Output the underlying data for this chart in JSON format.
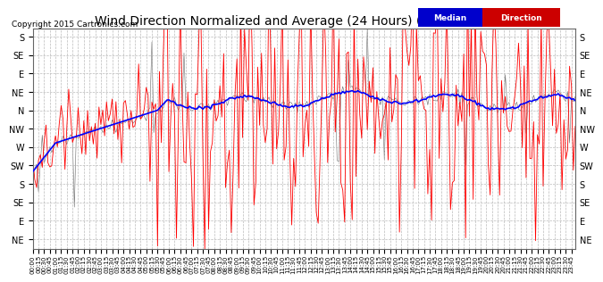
{
  "title": "Wind Direction Normalized and Average (24 Hours) (Old) 20150530",
  "copyright": "Copyright 2015 Cartronics.com",
  "background_color": "#ffffff",
  "plot_bg_color": "#ffffff",
  "grid_color": "#bbbbbb",
  "y_labels": [
    "S",
    "SE",
    "E",
    "NE",
    "N",
    "NW",
    "W",
    "SW",
    "S",
    "SE",
    "E",
    "NE"
  ],
  "y_values": [
    0,
    45,
    90,
    135,
    180,
    225,
    270,
    315,
    360,
    405,
    450,
    495
  ],
  "y_lim": [
    -20,
    520
  ],
  "red_line_color": "#ff0000",
  "blue_line_color": "#0000ff",
  "black_line_color": "#000000",
  "title_fontsize": 10,
  "copyright_fontsize": 6.5,
  "axis_label_fontsize": 7,
  "tick_fontsize": 5
}
